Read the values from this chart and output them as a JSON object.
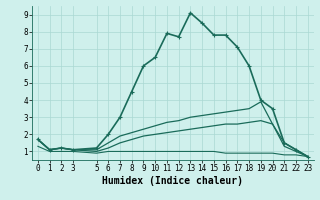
{
  "series": [
    {
      "x": [
        0,
        1,
        2,
        3,
        5,
        6,
        7,
        8,
        9,
        10,
        11,
        12,
        13,
        14,
        15,
        16,
        17,
        18,
        19,
        20,
        21,
        22,
        23
      ],
      "y": [
        1.7,
        1.1,
        1.2,
        1.1,
        1.2,
        2.0,
        3.0,
        4.5,
        6.0,
        6.5,
        7.9,
        7.7,
        9.1,
        8.5,
        7.8,
        7.8,
        7.1,
        6.0,
        4.0,
        3.5,
        1.5,
        1.1,
        0.7
      ],
      "color": "#1a6b5a",
      "linewidth": 1.2,
      "marker": "+"
    },
    {
      "x": [
        0,
        1,
        2,
        3,
        5,
        6,
        7,
        8,
        9,
        10,
        11,
        12,
        13,
        14,
        15,
        16,
        17,
        18,
        19,
        20,
        21,
        22,
        23
      ],
      "y": [
        1.7,
        1.1,
        1.2,
        1.1,
        1.1,
        1.5,
        1.9,
        2.1,
        2.3,
        2.5,
        2.7,
        2.8,
        3.0,
        3.1,
        3.2,
        3.3,
        3.4,
        3.5,
        3.9,
        2.6,
        1.5,
        1.1,
        0.7
      ],
      "color": "#1a6b5a",
      "linewidth": 0.9,
      "marker": null
    },
    {
      "x": [
        0,
        1,
        2,
        3,
        5,
        6,
        7,
        8,
        9,
        10,
        11,
        12,
        13,
        14,
        15,
        16,
        17,
        18,
        19,
        20,
        21,
        22,
        23
      ],
      "y": [
        1.7,
        1.1,
        1.2,
        1.1,
        1.0,
        1.2,
        1.5,
        1.7,
        1.9,
        2.0,
        2.1,
        2.2,
        2.3,
        2.4,
        2.5,
        2.6,
        2.6,
        2.7,
        2.8,
        2.6,
        1.3,
        1.0,
        0.7
      ],
      "color": "#1a6b5a",
      "linewidth": 0.9,
      "marker": null
    },
    {
      "x": [
        0,
        1,
        2,
        3,
        5,
        6,
        7,
        8,
        9,
        10,
        11,
        12,
        13,
        14,
        15,
        16,
        17,
        18,
        19,
        20,
        21,
        22,
        23
      ],
      "y": [
        1.3,
        1.0,
        1.0,
        1.0,
        0.9,
        1.0,
        1.0,
        1.0,
        1.0,
        1.0,
        1.0,
        1.0,
        1.0,
        1.0,
        1.0,
        0.9,
        0.9,
        0.9,
        0.9,
        0.9,
        0.8,
        0.8,
        0.7
      ],
      "color": "#1a6b5a",
      "linewidth": 0.8,
      "marker": null
    }
  ],
  "xlim": [
    -0.5,
    23.5
  ],
  "ylim": [
    0.5,
    9.5
  ],
  "xticks": [
    0,
    1,
    2,
    3,
    5,
    6,
    7,
    8,
    9,
    10,
    11,
    12,
    13,
    14,
    15,
    16,
    17,
    18,
    19,
    20,
    21,
    22,
    23
  ],
  "yticks": [
    1,
    2,
    3,
    4,
    5,
    6,
    7,
    8,
    9
  ],
  "xlabel": "Humidex (Indice chaleur)",
  "bg_color": "#cff0ec",
  "grid_color": "#aad8d3",
  "line_color": "#1a6b5a",
  "tick_fontsize": 5.5,
  "label_fontsize": 7.0
}
